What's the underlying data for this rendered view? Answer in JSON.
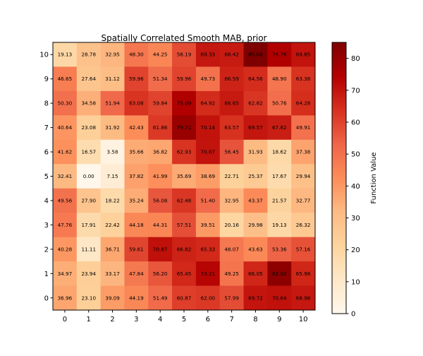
{
  "chart_data": {
    "type": "heatmap",
    "title": "Spatially Correlated Smooth MAB, prior",
    "xlabel": "",
    "ylabel": "",
    "x_ticks": [
      "0",
      "1",
      "2",
      "3",
      "4",
      "5",
      "6",
      "7",
      "8",
      "9",
      "10"
    ],
    "y_ticks": [
      "0",
      "1",
      "2",
      "3",
      "4",
      "5",
      "6",
      "7",
      "8",
      "9",
      "10"
    ],
    "rows_top_to_bottom": [
      10,
      9,
      8,
      7,
      6,
      5,
      4,
      3,
      2,
      1,
      0
    ],
    "values": [
      [
        "19.13",
        "28.78",
        "32.95",
        "48.30",
        "44.25",
        "58.19",
        "69.33",
        "68.42",
        "85.00",
        "74.76",
        "69.85"
      ],
      [
        "46.65",
        "27.64",
        "31.12",
        "59.96",
        "51.34",
        "59.96",
        "49.73",
        "66.59",
        "64.56",
        "48.90",
        "63.38"
      ],
      [
        "50.30",
        "34.58",
        "51.94",
        "63.08",
        "59.84",
        "75.09",
        "64.92",
        "68.65",
        "62.82",
        "50.76",
        "64.28"
      ],
      [
        "40.64",
        "23.08",
        "31.92",
        "42.43",
        "61.86",
        "79.71",
        "70.14",
        "63.57",
        "69.57",
        "67.82",
        "49.91"
      ],
      [
        "41.62",
        "16.57",
        "3.58",
        "35.66",
        "36.82",
        "62.93",
        "70.07",
        "56.45",
        "31.93",
        "18.62",
        "37.38"
      ],
      [
        "32.41",
        "0.00",
        "7.15",
        "37.82",
        "41.99",
        "35.69",
        "38.69",
        "22.71",
        "25.37",
        "17.67",
        "29.94"
      ],
      [
        "49.56",
        "27.90",
        "18.22",
        "35.24",
        "56.08",
        "62.48",
        "51.40",
        "32.95",
        "43.37",
        "21.57",
        "32.77"
      ],
      [
        "47.76",
        "17.91",
        "22.42",
        "44.18",
        "44.31",
        "57.51",
        "39.51",
        "20.16",
        "29.98",
        "19.13",
        "26.32"
      ],
      [
        "40.28",
        "11.11",
        "36.71",
        "59.61",
        "70.87",
        "66.82",
        "65.33",
        "48.07",
        "43.63",
        "53.36",
        "57.16"
      ],
      [
        "34.97",
        "23.94",
        "33.17",
        "47.84",
        "56.20",
        "65.45",
        "73.21",
        "49.25",
        "66.05",
        "82.02",
        "65.98"
      ],
      [
        "36.96",
        "23.10",
        "39.09",
        "44.19",
        "51.49",
        "60.87",
        "62.00",
        "57.99",
        "69.72",
        "70.64",
        "68.98"
      ]
    ],
    "colormap": "OrRd",
    "vmin": 0,
    "vmax": 85,
    "colorbar": {
      "label": "Function Value",
      "ticks": [
        "0",
        "10",
        "20",
        "30",
        "40",
        "50",
        "60",
        "70",
        "80"
      ]
    }
  }
}
